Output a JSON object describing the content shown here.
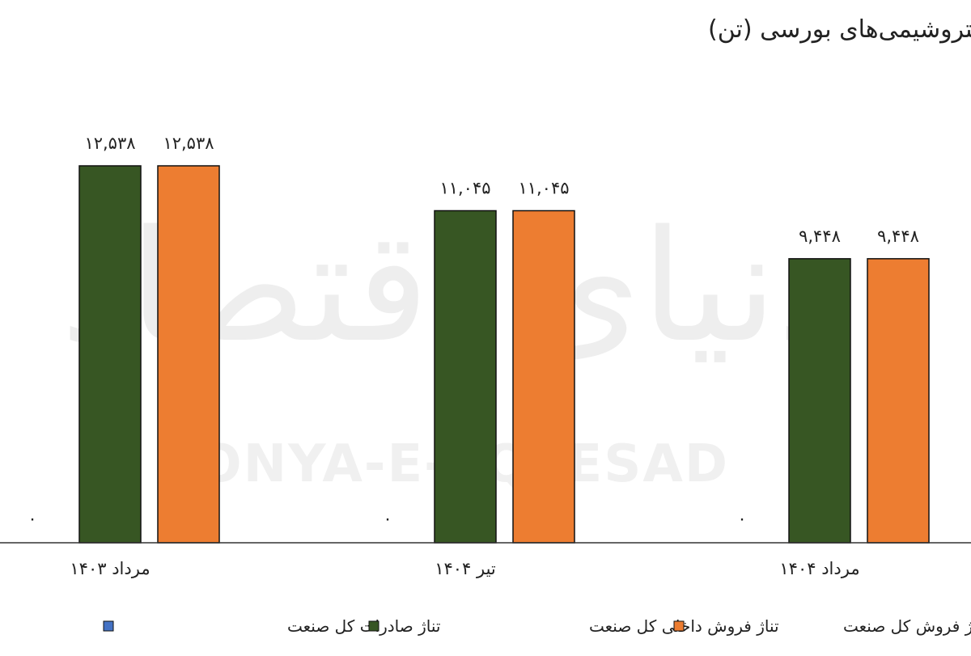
{
  "chart_data": {
    "type": "bar",
    "title": "تناژ فروش پی‌وی‌سی در پتروشیمی‌های بورسی (تن)",
    "categories": [
      "مرداد ۱۴۰۳",
      "تیر ۱۴۰۴",
      "مرداد ۱۴۰۴"
    ],
    "series": [
      {
        "name": "تناژ صادرات کل صنعت",
        "color": "#4472C4",
        "values": [
          0,
          0,
          0
        ],
        "labels": [
          "۰",
          "۰",
          "۰"
        ]
      },
      {
        "name": "تناژ فروش داخلی کل صنعت",
        "color": "#375623",
        "values": [
          12538,
          11045,
          9448
        ],
        "labels": [
          "۱۲,۵۳۸",
          "۱۱,۰۴۵",
          "۹,۴۴۸"
        ]
      },
      {
        "name": "تناژ فروش کل صنعت",
        "color": "#ED7D31",
        "values": [
          12538,
          11045,
          9448
        ],
        "labels": [
          "۱۲,۵۳۸",
          "۱۱,۰۴۵",
          "۹,۴۴۸"
        ]
      }
    ],
    "ylim": [
      0,
      14000
    ],
    "grid": false,
    "legend_position": "bottom"
  },
  "watermark": {
    "text_fa": "دنیای اقتصاد",
    "text_en": "DONYA-E-EQTESAD"
  }
}
